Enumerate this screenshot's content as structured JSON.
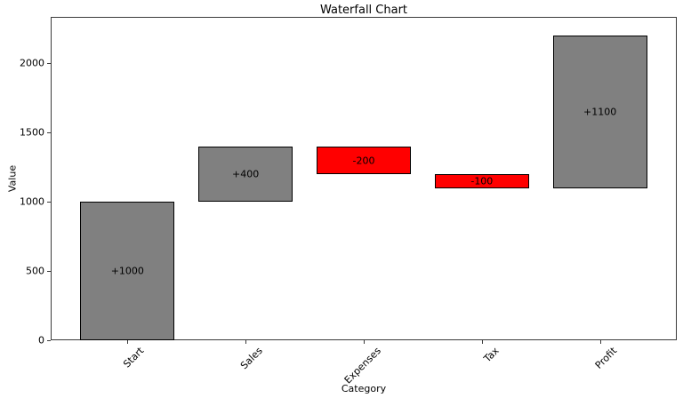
{
  "chart_data": {
    "type": "bar",
    "variant": "waterfall",
    "title": "Waterfall Chart",
    "xlabel": "Category",
    "ylabel": "Value",
    "categories": [
      "Start",
      "Sales",
      "Expenses",
      "Tax",
      "Profit"
    ],
    "bars": [
      {
        "category": "Start",
        "start": 0,
        "end": 1000,
        "delta": 1000,
        "label": "+1000",
        "direction": "increase"
      },
      {
        "category": "Sales",
        "start": 1000,
        "end": 1400,
        "delta": 400,
        "label": "+400",
        "direction": "increase"
      },
      {
        "category": "Expenses",
        "start": 1400,
        "end": 1200,
        "delta": -200,
        "label": "-200",
        "direction": "decrease"
      },
      {
        "category": "Tax",
        "start": 1200,
        "end": 1100,
        "delta": -100,
        "label": "-100",
        "direction": "decrease"
      },
      {
        "category": "Profit",
        "start": 1100,
        "end": 2200,
        "delta": 1100,
        "label": "+1100",
        "direction": "increase"
      }
    ],
    "yticks": [
      0,
      500,
      1000,
      1500,
      2000
    ],
    "ylim": [
      0,
      2337
    ],
    "xlim": [
      -0.65,
      4.65
    ],
    "bar_width": 0.8,
    "tick_rotation": 45,
    "grid": false,
    "legend": null,
    "colors": {
      "increase": "#808080",
      "decrease": "#ff0000",
      "edge": "#000000",
      "text": "#000000",
      "background": "#ffffff"
    }
  }
}
